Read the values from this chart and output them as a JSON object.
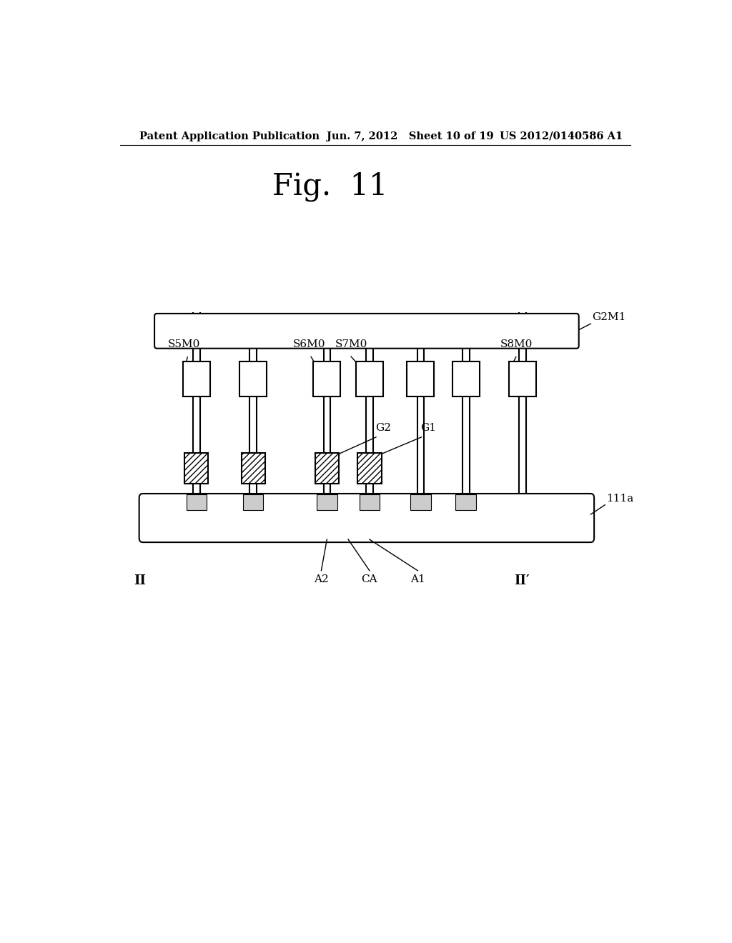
{
  "bg_color": "#ffffff",
  "header_left": "Patent Application Publication",
  "header_mid": "Jun. 7, 2012   Sheet 10 of 19",
  "header_right": "US 2012/0140586 A1",
  "fig_title": "Fig.  11"
}
